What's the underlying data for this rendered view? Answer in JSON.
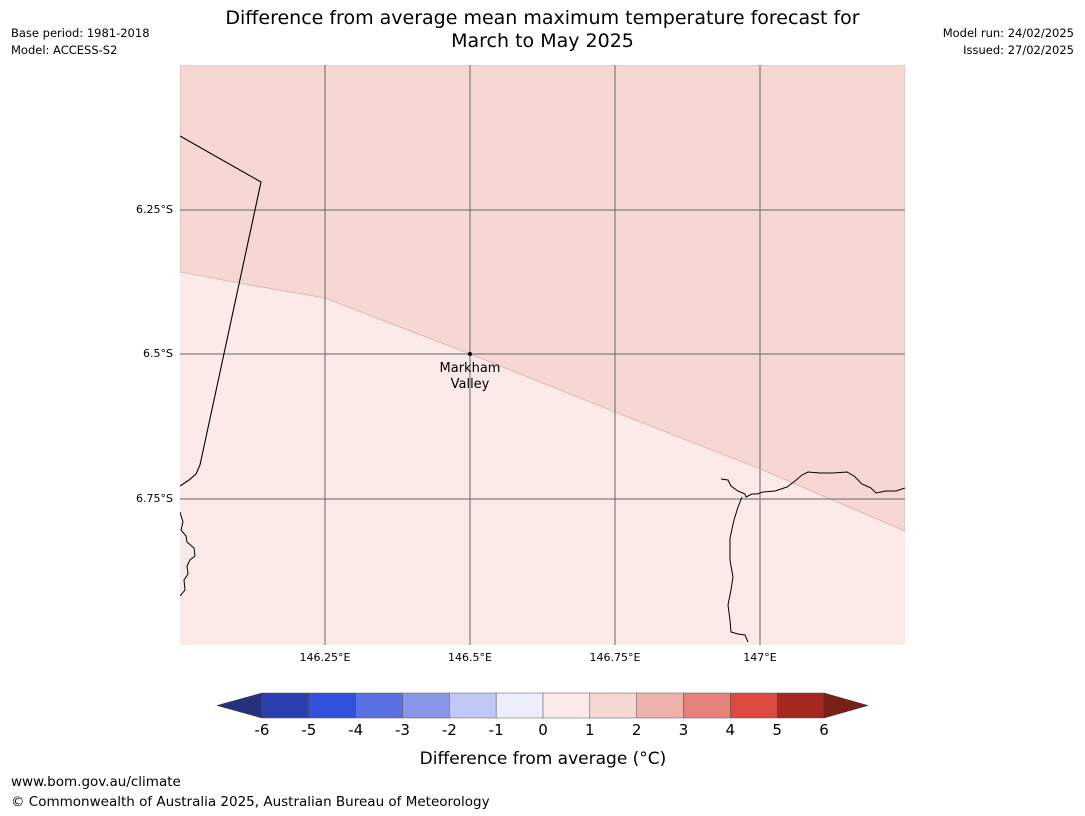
{
  "title_line1": "Difference from average mean maximum temperature forecast for",
  "title_line2": "March to May 2025",
  "meta_left": {
    "base_period": "Base period: 1981-2018",
    "model": "Model: ACCESS-S2"
  },
  "meta_right": {
    "model_run": "Model run: 24/02/2025",
    "issued": "Issued: 27/02/2025"
  },
  "map": {
    "place_label_line1": "Markham",
    "place_label_line2": "Valley",
    "lat_labels": [
      "6.25°S",
      "6.5°S",
      "6.75°S"
    ],
    "lon_labels": [
      "146.25°E",
      "146.5°E",
      "146.75°E",
      "147°E"
    ]
  },
  "colorbar": {
    "label": "Difference from average (°C)",
    "ticks": [
      "-6",
      "-5",
      "-4",
      "-3",
      "-2",
      "-1",
      "0",
      "1",
      "2",
      "3",
      "4",
      "5",
      "6"
    ],
    "colors": [
      "#25307f",
      "#2b3eaf",
      "#3250dd",
      "#5b70e3",
      "#8896ea",
      "#c1c8f5",
      "#eceefc",
      "#fbeae8",
      "#f6d7d4",
      "#efb1ac",
      "#e5827c",
      "#dd4a40",
      "#a6271f",
      "#772119"
    ]
  },
  "footer": {
    "url": "www.bom.gov.au/climate",
    "copyright": "© Commonwealth of Australia 2025, Australian Bureau of Meteorology"
  }
}
